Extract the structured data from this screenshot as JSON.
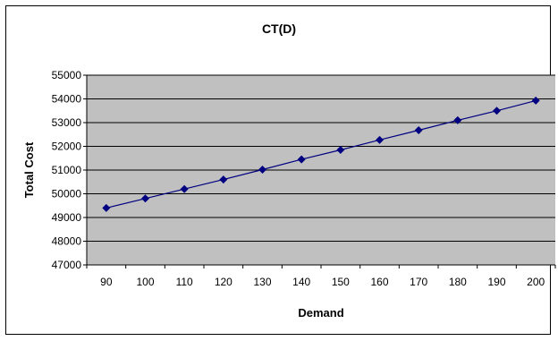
{
  "chart_data": {
    "type": "line",
    "title": "CT(D)",
    "xlabel": "Demand",
    "ylabel": "Total Cost",
    "categories": [
      "90",
      "100",
      "110",
      "120",
      "130",
      "140",
      "150",
      "160",
      "170",
      "180",
      "190",
      "200"
    ],
    "series": [
      {
        "values": [
          49400,
          49800,
          50200,
          50600,
          51020,
          51450,
          51850,
          52270,
          52680,
          53100,
          53500,
          53930
        ]
      }
    ],
    "ylim": [
      47000,
      55000
    ],
    "yticks": [
      47000,
      48000,
      49000,
      50000,
      51000,
      52000,
      53000,
      54000,
      55000
    ],
    "grid": true,
    "legend": "none",
    "colors": {
      "plot_background": "#c0c0c0",
      "line": "#000080",
      "marker": "#000080",
      "gridline": "#000000"
    }
  }
}
